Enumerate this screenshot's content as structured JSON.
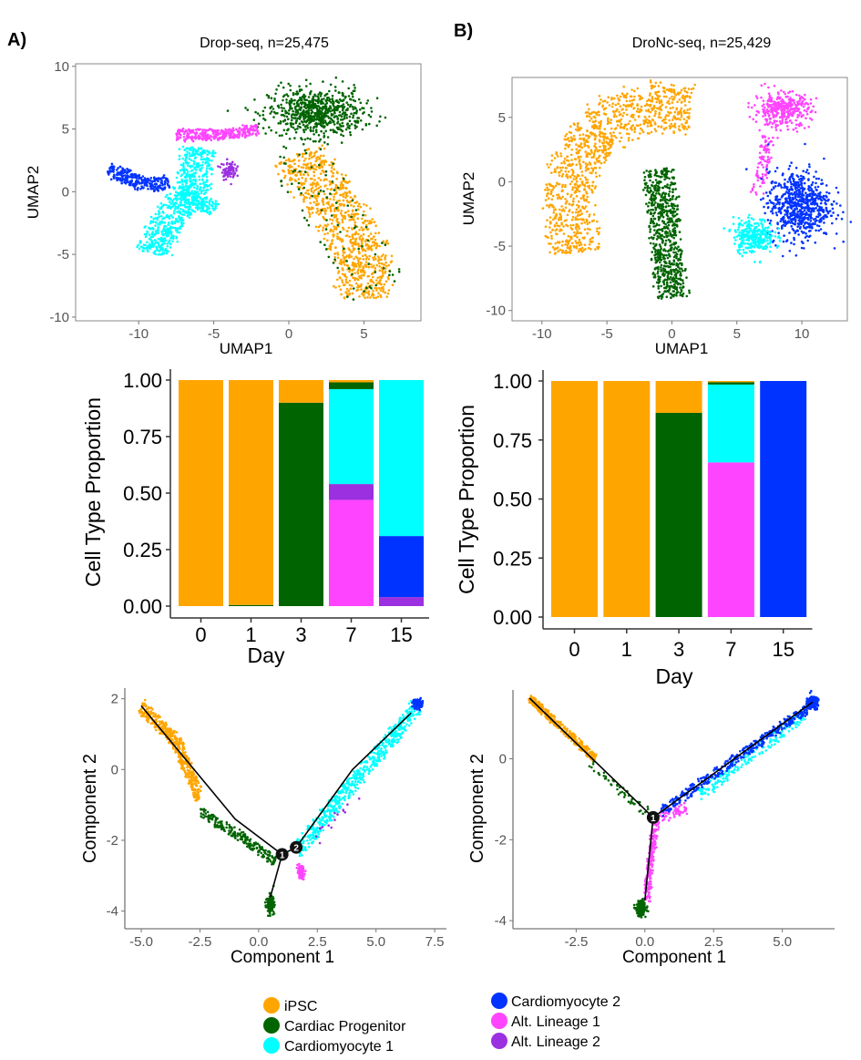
{
  "panel_labels": [
    "A)",
    "B)"
  ],
  "colors": {
    "iPSC": "#FFA500",
    "Cardiac Progenitor": "#006400",
    "Cardiomyocyte 1": "#00FFFF",
    "Cardiomyocyte 2": "#0033FF",
    "Alt. Lineage 1": "#FF44FF",
    "Alt. Lineage 2": "#9B30E0"
  },
  "legend": [
    {
      "label": "iPSC",
      "key": "iPSC"
    },
    {
      "label": "Cardiac Progenitor",
      "key": "Cardiac Progenitor"
    },
    {
      "label": "Cardiomyocyte 1",
      "key": "Cardiomyocyte 1"
    },
    {
      "label": "Cardiomyocyte 2",
      "key": "Cardiomyocyte 2"
    },
    {
      "label": "Alt. Lineage 1",
      "key": "Alt. Lineage 1"
    },
    {
      "label": "Alt. Lineage 2",
      "key": "Alt. Lineage 2"
    }
  ],
  "chart_data": [
    {
      "id": "umapA",
      "type": "scatter",
      "title": "Drop-seq, n=25,475",
      "xlabel": "UMAP1",
      "ylabel": "UMAP2",
      "xlim": [
        -14.2,
        8.8
      ],
      "ylim": [
        -10.3,
        10.2
      ],
      "xticks": [
        -10,
        -5,
        0,
        5
      ],
      "yticks": [
        10,
        5,
        0,
        -5,
        -10
      ],
      "grid": false,
      "frame": true,
      "clusters": [
        {
          "key": "iPSC",
          "shape": "path",
          "path": [
            [
              0.5,
              3
            ],
            [
              3,
              -1
            ],
            [
              5,
              -5
            ],
            [
              5,
              -8.5
            ]
          ],
          "width": 4.2,
          "n": 900
        },
        {
          "key": "Cardiac Progenitor",
          "shape": "blob",
          "center": [
            1.8,
            6.3
          ],
          "spread": [
            2.6,
            1.6
          ],
          "n": 700
        },
        {
          "key": "Cardiac Progenitor",
          "shape": "path",
          "path": [
            [
              0,
              4
            ],
            [
              3,
              -2
            ],
            [
              6,
              -8
            ]
          ],
          "width": 5,
          "n": 90
        },
        {
          "key": "Cardiomyocyte 1",
          "shape": "path",
          "path": [
            [
              -6,
              3.5
            ],
            [
              -6.5,
              0
            ],
            [
              -8.5,
              -3
            ],
            [
              -9,
              -5
            ]
          ],
          "width": 2.6,
          "n": 700
        },
        {
          "key": "Cardiomyocyte 1",
          "shape": "path",
          "path": [
            [
              -7,
              0
            ],
            [
              -5,
              -1.5
            ]
          ],
          "width": 1.5,
          "n": 150
        },
        {
          "key": "Cardiomyocyte 2",
          "shape": "path",
          "path": [
            [
              -12,
              1.8
            ],
            [
              -9.5,
              0.5
            ],
            [
              -8,
              0.8
            ]
          ],
          "width": 1.3,
          "n": 260
        },
        {
          "key": "Alt. Lineage 1",
          "shape": "path",
          "path": [
            [
              -7.5,
              4.5
            ],
            [
              -4,
              4.6
            ],
            [
              -2,
              5
            ]
          ],
          "width": 1.1,
          "n": 300
        },
        {
          "key": "Alt. Lineage 2",
          "shape": "blob",
          "center": [
            -4,
            1.7
          ],
          "spread": [
            0.4,
            0.6
          ],
          "n": 80
        }
      ]
    },
    {
      "id": "umapB",
      "type": "scatter",
      "title": "DroNc-seq, n=25,429",
      "xlabel": "UMAP1",
      "ylabel": "UMAP2",
      "xlim": [
        -12.3,
        13.5
      ],
      "ylim": [
        -10.8,
        8.1
      ],
      "xticks": [
        -10,
        -5,
        0,
        5,
        10
      ],
      "yticks": [
        5,
        0,
        -5,
        -10
      ],
      "grid": false,
      "frame": true,
      "clusters": [
        {
          "key": "iPSC",
          "shape": "path",
          "path": [
            [
              -7.5,
              -5.5
            ],
            [
              -8,
              0
            ],
            [
              -6,
              4
            ],
            [
              -2,
              6
            ],
            [
              1.5,
              5.5
            ]
          ],
          "width": 4.5,
          "n": 1100
        },
        {
          "key": "Cardiac Progenitor",
          "shape": "path",
          "path": [
            [
              -1,
              1
            ],
            [
              -0.5,
              -4
            ],
            [
              0,
              -9
            ]
          ],
          "width": 2.8,
          "n": 700
        },
        {
          "key": "Alt. Lineage 1",
          "shape": "blob",
          "center": [
            8.5,
            5.6
          ],
          "spread": [
            1.8,
            1.1
          ],
          "n": 350
        },
        {
          "key": "Alt. Lineage 1",
          "shape": "path",
          "path": [
            [
              7.5,
              3.5
            ],
            [
              6.5,
              -1
            ]
          ],
          "width": 1.2,
          "n": 90
        },
        {
          "key": "Cardiomyocyte 2",
          "shape": "blob",
          "center": [
            9.8,
            -1.8
          ],
          "spread": [
            2,
            2.2
          ],
          "n": 700
        },
        {
          "key": "Cardiomyocyte 1",
          "shape": "blob",
          "center": [
            6.3,
            -4.2
          ],
          "spread": [
            1.3,
            1.1
          ],
          "n": 300
        }
      ]
    },
    {
      "id": "barA",
      "type": "bar",
      "stacked": true,
      "xlabel": "Day",
      "ylabel": "Cell Type Proportion",
      "ylim": [
        0,
        1
      ],
      "yticks": [
        "1.00",
        "0.75",
        "0.50",
        "0.25",
        "0.00"
      ],
      "categories": [
        "0",
        "1",
        "3",
        "7",
        "15"
      ],
      "series": [
        {
          "key": "Alt. Lineage 1",
          "values": [
            0,
            0,
            0,
            0.47,
            0
          ]
        },
        {
          "key": "Alt. Lineage 2",
          "values": [
            0,
            0,
            0,
            0.07,
            0.04
          ]
        },
        {
          "key": "Cardiomyocyte 2",
          "values": [
            0,
            0,
            0,
            0,
            0.27
          ]
        },
        {
          "key": "Cardiomyocyte 1",
          "values": [
            0,
            0,
            0,
            0.42,
            0.69
          ]
        },
        {
          "key": "Cardiac Progenitor",
          "values": [
            0,
            0.005,
            0.9,
            0.03,
            0
          ]
        },
        {
          "key": "iPSC",
          "values": [
            1.0,
            0.995,
            0.1,
            0.01,
            0
          ]
        }
      ]
    },
    {
      "id": "barB",
      "type": "bar",
      "stacked": true,
      "xlabel": "Day",
      "ylabel": "Cell Type Proportion",
      "ylim": [
        0,
        1
      ],
      "yticks": [
        "1.00",
        "0.75",
        "0.50",
        "0.25",
        "0.00"
      ],
      "categories": [
        "0",
        "1",
        "3",
        "7",
        "15"
      ],
      "series": [
        {
          "key": "Alt. Lineage 1",
          "values": [
            0,
            0,
            0,
            0.655,
            0
          ]
        },
        {
          "key": "Alt. Lineage 2",
          "values": [
            0,
            0,
            0,
            0,
            0
          ]
        },
        {
          "key": "Cardiomyocyte 2",
          "values": [
            0,
            0,
            0,
            0,
            1.0
          ]
        },
        {
          "key": "Cardiomyocyte 1",
          "values": [
            0,
            0,
            0,
            0.33,
            0
          ]
        },
        {
          "key": "Cardiac Progenitor",
          "values": [
            0,
            0,
            0.865,
            0.01,
            0
          ]
        },
        {
          "key": "iPSC",
          "values": [
            1.0,
            1.0,
            0.135,
            0.005,
            0
          ]
        }
      ]
    },
    {
      "id": "trajA",
      "type": "scatter",
      "xlabel": "Component 1",
      "ylabel": "Component 2",
      "xlim": [
        -5.7,
        8.0
      ],
      "ylim": [
        -4.5,
        2.3
      ],
      "xticks": [
        "-5.0",
        "-2.5",
        "0.0",
        "2.5",
        "5.0",
        "7.5"
      ],
      "yticks": [
        "2",
        "0",
        "-2",
        "-4"
      ],
      "grid": false,
      "frame": false,
      "trajectory": [
        [
          [
            -5,
            1.8
          ],
          [
            -3,
            0.2
          ],
          [
            -1,
            -1.4
          ],
          [
            1,
            -2.4
          ]
        ],
        [
          [
            1,
            -2.4
          ],
          [
            1.6,
            -2.2
          ]
        ],
        [
          [
            1,
            -2.4
          ],
          [
            0.5,
            -3.6
          ]
        ],
        [
          [
            1.6,
            -2.2
          ],
          [
            4,
            0
          ],
          [
            6.5,
            1.6
          ]
        ]
      ],
      "branch_points": [
        {
          "label": "1",
          "at": [
            1,
            -2.4
          ]
        },
        {
          "label": "2",
          "at": [
            1.6,
            -2.2
          ]
        }
      ],
      "clusters": [
        {
          "key": "iPSC",
          "shape": "path",
          "path": [
            [
              -5,
              1.8
            ],
            [
              -3.5,
              0.8
            ],
            [
              -2.5,
              -0.8
            ]
          ],
          "width": 0.5,
          "n": 450
        },
        {
          "key": "Cardiac Progenitor",
          "shape": "path",
          "path": [
            [
              -2.5,
              -1.2
            ],
            [
              -0.5,
              -2
            ],
            [
              0.7,
              -2.6
            ]
          ],
          "width": 0.35,
          "n": 220
        },
        {
          "key": "Cardiac Progenitor",
          "shape": "blob",
          "center": [
            0.5,
            -3.8
          ],
          "spread": [
            0.12,
            0.2
          ],
          "n": 160
        },
        {
          "key": "Alt. Lineage 1",
          "shape": "blob",
          "center": [
            1.8,
            -2.9
          ],
          "spread": [
            0.12,
            0.15
          ],
          "n": 100
        },
        {
          "key": "Cardiomyocyte 1",
          "shape": "path",
          "path": [
            [
              1.6,
              -2.3
            ],
            [
              4,
              -0.4
            ],
            [
              6.8,
              1.8
            ]
          ],
          "width": 0.6,
          "n": 600
        },
        {
          "key": "Cardiomyocyte 2",
          "shape": "blob",
          "center": [
            6.8,
            1.85
          ],
          "spread": [
            0.2,
            0.12
          ],
          "n": 70
        },
        {
          "key": "Alt. Lineage 2",
          "shape": "path",
          "path": [
            [
              2.5,
              -2
            ],
            [
              5,
              0
            ]
          ],
          "width": 0.6,
          "n": 15
        }
      ]
    },
    {
      "id": "trajB",
      "type": "scatter",
      "xlabel": "Component 1",
      "ylabel": "Component 2",
      "xlim": [
        -4.8,
        6.9
      ],
      "ylim": [
        -4.2,
        1.7
      ],
      "xticks": [
        "-2.5",
        "0.0",
        "2.5",
        "5.0"
      ],
      "yticks": [
        "0",
        "-2",
        "-4"
      ],
      "grid": false,
      "frame": false,
      "trajectory": [
        [
          [
            -4.2,
            1.5
          ],
          [
            0.3,
            -1.45
          ]
        ],
        [
          [
            0.3,
            -1.45
          ],
          [
            0,
            -3.5
          ]
        ],
        [
          [
            0.3,
            -1.45
          ],
          [
            6.1,
            1.4
          ]
        ]
      ],
      "branch_points": [
        {
          "label": "1",
          "at": [
            0.3,
            -1.45
          ]
        }
      ],
      "clusters": [
        {
          "key": "iPSC",
          "shape": "path",
          "path": [
            [
              -4.2,
              1.5
            ],
            [
              -1.8,
              0
            ]
          ],
          "width": 0.25,
          "n": 350
        },
        {
          "key": "Cardiac Progenitor",
          "shape": "path",
          "path": [
            [
              -2,
              -0.1
            ],
            [
              0.2,
              -1.4
            ]
          ],
          "width": 0.3,
          "n": 50
        },
        {
          "key": "Alt. Lineage 1",
          "shape": "path",
          "path": [
            [
              0.4,
              -1.5
            ],
            [
              0.05,
              -3.5
            ]
          ],
          "width": 0.3,
          "n": 220
        },
        {
          "key": "Alt. Lineage 1",
          "shape": "path",
          "path": [
            [
              0.4,
              -1.5
            ],
            [
              1.5,
              -1.2
            ]
          ],
          "width": 0.35,
          "n": 60
        },
        {
          "key": "Cardiac Progenitor",
          "shape": "blob",
          "center": [
            -0.15,
            -3.7
          ],
          "spread": [
            0.15,
            0.17
          ],
          "n": 150
        },
        {
          "key": "Cardiomyocyte 1",
          "shape": "path",
          "path": [
            [
              2,
              -0.9
            ],
            [
              5.8,
              1.1
            ]
          ],
          "width": 0.35,
          "n": 180
        },
        {
          "key": "Cardiomyocyte 2",
          "shape": "path",
          "path": [
            [
              0.6,
              -1.3
            ],
            [
              6,
              1.3
            ]
          ],
          "width": 0.3,
          "n": 380
        },
        {
          "key": "Cardiomyocyte 2",
          "shape": "blob",
          "center": [
            6.1,
            1.4
          ],
          "spread": [
            0.15,
            0.12
          ],
          "n": 250
        }
      ]
    }
  ]
}
